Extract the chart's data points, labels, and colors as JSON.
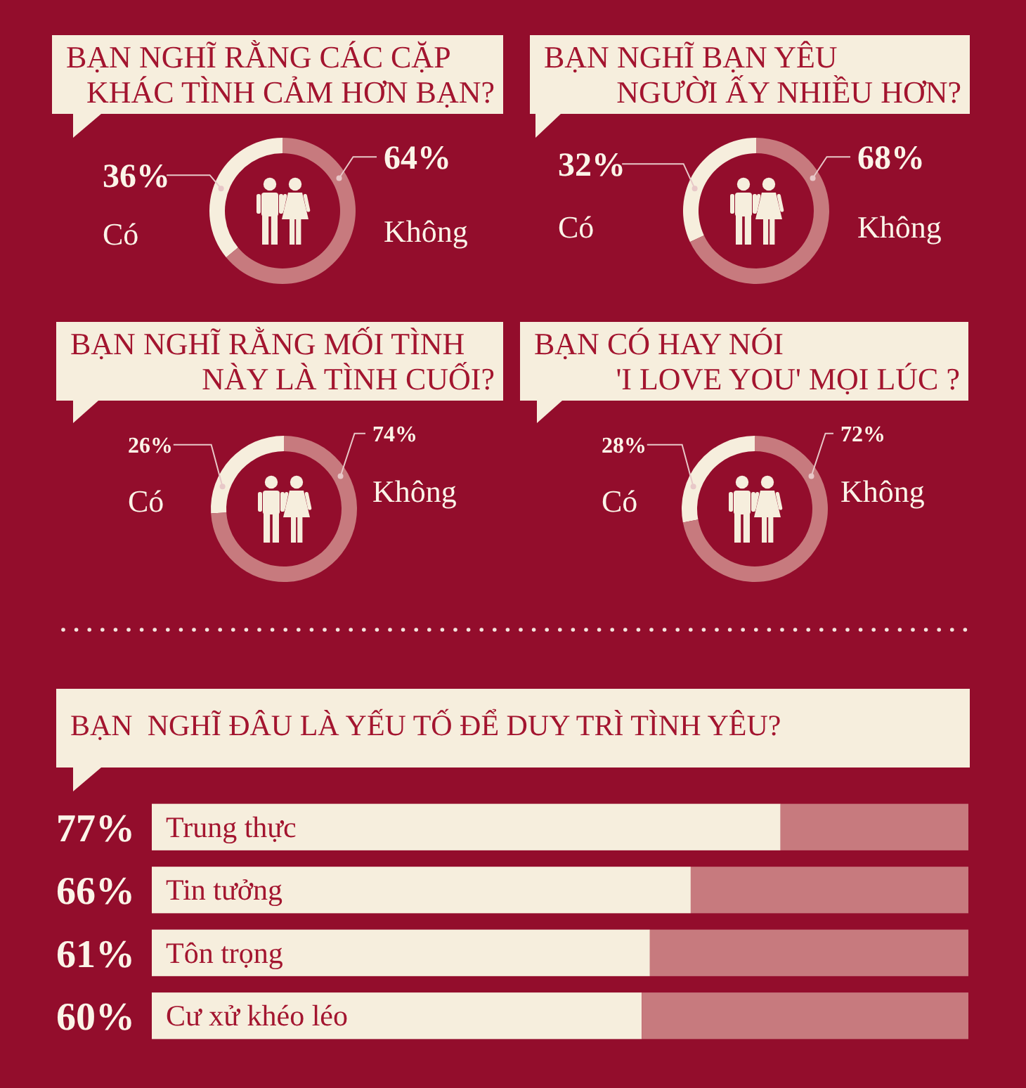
{
  "chart_data": [
    {
      "type": "donut",
      "title": "BẠN NGHĨ RẰNG CÁC CẶP\nKHÁC TÌNH CẢM HƠN BẠN?",
      "categories": [
        "Có",
        "Không"
      ],
      "values": [
        36,
        64
      ],
      "colors": [
        "#f6eedd",
        "#c77a7e"
      ],
      "value_labels": [
        "36%",
        "64%"
      ]
    },
    {
      "type": "donut",
      "title": "BẠN NGHĨ BẠN YÊU\nNGƯỜI ẤY NHIỀU HƠN?",
      "categories": [
        "Có",
        "Không"
      ],
      "values": [
        32,
        68
      ],
      "colors": [
        "#f6eedd",
        "#c77a7e"
      ],
      "value_labels": [
        "32%",
        "68%"
      ]
    },
    {
      "type": "donut",
      "title": "BẠN NGHĨ RẰNG MỐI TÌNH\nNÀY LÀ TÌNH CUỐI?",
      "categories": [
        "Có",
        "Không"
      ],
      "values": [
        26,
        74
      ],
      "colors": [
        "#f6eedd",
        "#c77a7e"
      ],
      "value_labels": [
        "26%",
        "74%"
      ]
    },
    {
      "type": "donut",
      "title": "BẠN CÓ HAY NÓI\n'I LOVE YOU' MỌI LÚC ?",
      "categories": [
        "Có",
        "Không"
      ],
      "values": [
        28,
        72
      ],
      "colors": [
        "#f6eedd",
        "#c77a7e"
      ],
      "value_labels": [
        "28%",
        "72%"
      ]
    },
    {
      "type": "bar",
      "orientation": "horizontal",
      "stacked": true,
      "title": "BẠN  NGHĨ ĐÂU LÀ YẾU TỐ ĐỂ DUY TRÌ TÌNH YÊU?",
      "categories": [
        "Trung thực",
        "Tin tưởng",
        "Tôn trọng",
        "Cư xử khéo léo"
      ],
      "series": [
        {
          "color": "#f6eedd",
          "values": [
            77,
            66,
            61,
            60
          ],
          "value_labels": [
            "77%",
            "66%",
            "61%",
            "60%"
          ]
        },
        {
          "color": "#c77a7e",
          "values": [
            23,
            34,
            39,
            40
          ]
        }
      ],
      "xlim": [
        0,
        100
      ]
    }
  ]
}
